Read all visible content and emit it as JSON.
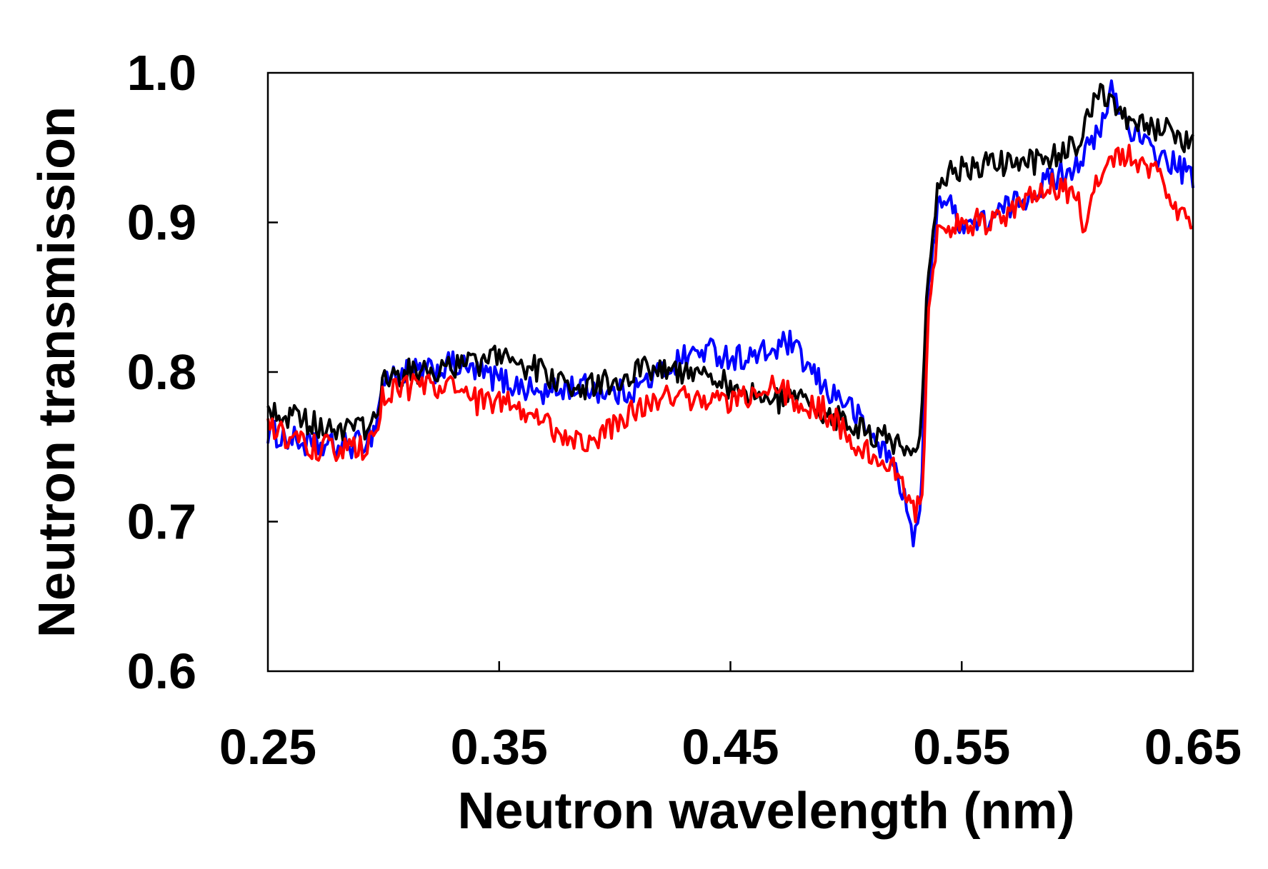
{
  "chart_data": {
    "type": "line",
    "title": "",
    "xlabel": "Neutron wavelength (nm)",
    "ylabel": "Neutron transmission",
    "xlim": [
      0.25,
      0.65
    ],
    "ylim": [
      0.6,
      1.0
    ],
    "xticks": [
      0.25,
      0.35,
      0.45,
      0.55,
      0.65
    ],
    "xtick_labels": [
      "0.25",
      "0.35",
      "0.45",
      "0.55",
      "0.65"
    ],
    "yticks": [
      0.6,
      0.7,
      0.8,
      0.9,
      1.0
    ],
    "ytick_labels": [
      "0.6",
      "0.7",
      "0.8",
      "0.9",
      "1.0"
    ],
    "grid": false,
    "legend": "none",
    "series": [
      {
        "name": "blue",
        "color": "#0000ff",
        "x": [
          0.25,
          0.26,
          0.27,
          0.28,
          0.29,
          0.296,
          0.3,
          0.31,
          0.32,
          0.33,
          0.34,
          0.35,
          0.36,
          0.37,
          0.38,
          0.39,
          0.4,
          0.41,
          0.42,
          0.43,
          0.44,
          0.45,
          0.46,
          0.47,
          0.475,
          0.48,
          0.49,
          0.5,
          0.51,
          0.52,
          0.525,
          0.528,
          0.532,
          0.535,
          0.54,
          0.55,
          0.56,
          0.57,
          0.58,
          0.59,
          0.6,
          0.61,
          0.615,
          0.62,
          0.63,
          0.64,
          0.65
        ],
        "y": [
          0.76,
          0.755,
          0.75,
          0.75,
          0.752,
          0.76,
          0.795,
          0.8,
          0.8,
          0.805,
          0.8,
          0.795,
          0.79,
          0.785,
          0.79,
          0.79,
          0.785,
          0.79,
          0.8,
          0.81,
          0.815,
          0.81,
          0.81,
          0.815,
          0.82,
          0.81,
          0.79,
          0.78,
          0.76,
          0.74,
          0.72,
          0.69,
          0.7,
          0.84,
          0.92,
          0.9,
          0.9,
          0.91,
          0.92,
          0.93,
          0.94,
          0.96,
          0.99,
          0.97,
          0.95,
          0.94,
          0.93
        ]
      },
      {
        "name": "black",
        "color": "#000000",
        "x": [
          0.25,
          0.26,
          0.27,
          0.28,
          0.29,
          0.296,
          0.3,
          0.31,
          0.32,
          0.33,
          0.34,
          0.35,
          0.36,
          0.37,
          0.38,
          0.39,
          0.4,
          0.41,
          0.42,
          0.43,
          0.44,
          0.45,
          0.46,
          0.47,
          0.48,
          0.49,
          0.5,
          0.51,
          0.52,
          0.528,
          0.532,
          0.535,
          0.54,
          0.55,
          0.56,
          0.57,
          0.58,
          0.59,
          0.6,
          0.61,
          0.62,
          0.63,
          0.64,
          0.65
        ],
        "y": [
          0.775,
          0.77,
          0.765,
          0.762,
          0.76,
          0.765,
          0.795,
          0.8,
          0.8,
          0.805,
          0.805,
          0.81,
          0.805,
          0.8,
          0.79,
          0.79,
          0.795,
          0.8,
          0.805,
          0.8,
          0.8,
          0.79,
          0.785,
          0.78,
          0.78,
          0.775,
          0.765,
          0.76,
          0.755,
          0.745,
          0.75,
          0.86,
          0.93,
          0.935,
          0.94,
          0.94,
          0.94,
          0.945,
          0.95,
          0.99,
          0.97,
          0.965,
          0.96,
          0.95
        ]
      },
      {
        "name": "red",
        "color": "#ff0000",
        "x": [
          0.25,
          0.26,
          0.27,
          0.28,
          0.29,
          0.296,
          0.3,
          0.31,
          0.32,
          0.33,
          0.34,
          0.35,
          0.36,
          0.37,
          0.38,
          0.39,
          0.4,
          0.41,
          0.42,
          0.43,
          0.44,
          0.45,
          0.46,
          0.47,
          0.48,
          0.49,
          0.5,
          0.51,
          0.52,
          0.525,
          0.53,
          0.533,
          0.536,
          0.54,
          0.55,
          0.56,
          0.57,
          0.58,
          0.59,
          0.6,
          0.602,
          0.61,
          0.62,
          0.63,
          0.64,
          0.65
        ],
        "y": [
          0.765,
          0.755,
          0.75,
          0.748,
          0.748,
          0.752,
          0.785,
          0.79,
          0.79,
          0.79,
          0.78,
          0.78,
          0.775,
          0.765,
          0.755,
          0.755,
          0.765,
          0.775,
          0.785,
          0.785,
          0.78,
          0.78,
          0.785,
          0.79,
          0.78,
          0.775,
          0.76,
          0.745,
          0.735,
          0.725,
          0.705,
          0.72,
          0.85,
          0.895,
          0.9,
          0.9,
          0.905,
          0.915,
          0.925,
          0.92,
          0.89,
          0.935,
          0.945,
          0.94,
          0.92,
          0.89
        ]
      }
    ]
  }
}
